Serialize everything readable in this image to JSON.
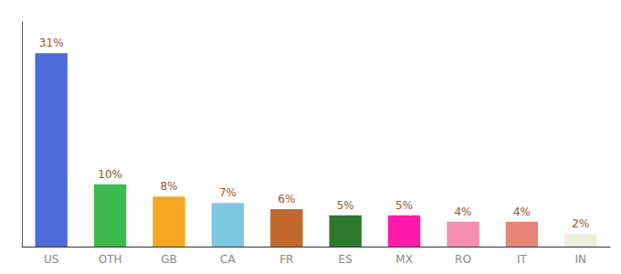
{
  "chart_data": {
    "type": "bar",
    "categories": [
      "US",
      "OTH",
      "GB",
      "CA",
      "FR",
      "ES",
      "MX",
      "RO",
      "IT",
      "IN"
    ],
    "values": [
      31,
      10,
      8,
      7,
      6,
      5,
      5,
      4,
      4,
      2
    ],
    "value_labels": [
      "31%",
      "10%",
      "8%",
      "7%",
      "6%",
      "5%",
      "5%",
      "4%",
      "4%",
      "2%"
    ],
    "colors": [
      "#4d6cd9",
      "#3dba4e",
      "#f5a623",
      "#7ec8e3",
      "#c0692a",
      "#2d7a2d",
      "#ff1aaa",
      "#f48fb1",
      "#e8857a",
      "#eeeedd"
    ],
    "ylim": [
      0,
      36
    ],
    "grid": false,
    "tick_labels": "x",
    "data_labels": true
  }
}
